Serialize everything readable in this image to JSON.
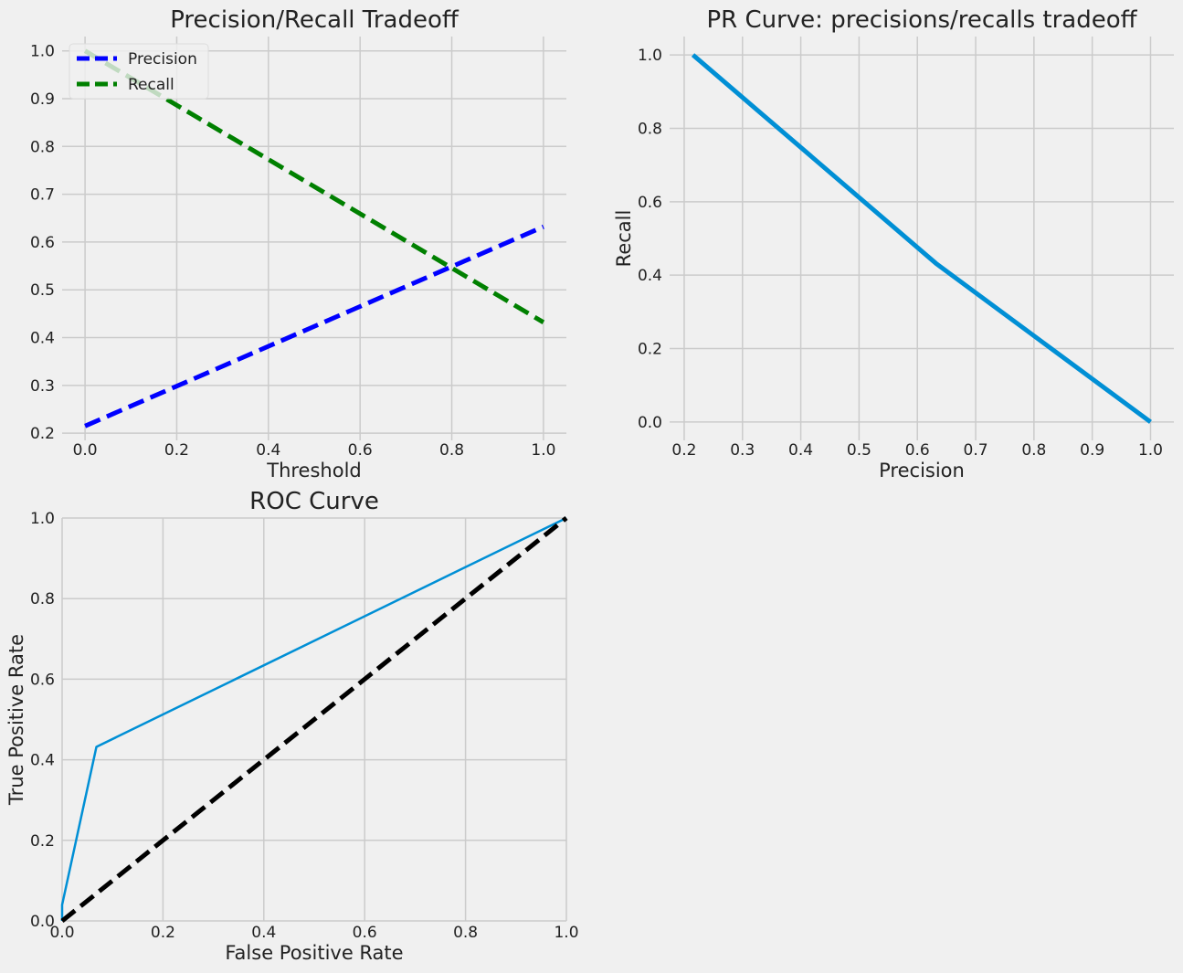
{
  "chart_data": [
    {
      "type": "line",
      "title": "Precision/Recall Tradeoff",
      "xlabel": "Threshold",
      "ylabel": "",
      "xlim": [
        -0.05,
        1.05
      ],
      "ylim": [
        0.185,
        1.03
      ],
      "xticks": [
        0.0,
        0.2,
        0.4,
        0.6,
        0.8,
        1.0
      ],
      "xtick_labels": [
        "0.0",
        "0.2",
        "0.4",
        "0.6",
        "0.8",
        "1.0"
      ],
      "yticks": [
        0.2,
        0.3,
        0.4,
        0.5,
        0.6,
        0.7,
        0.8,
        0.9,
        1.0
      ],
      "ytick_labels": [
        "0.2",
        "0.3",
        "0.4",
        "0.5",
        "0.6",
        "0.7",
        "0.8",
        "0.9",
        "1.0"
      ],
      "grid": true,
      "legend": "upper-left",
      "series": [
        {
          "name": "Precision",
          "color": "#0000ff",
          "style": "dashed",
          "x": [
            0,
            1
          ],
          "y": [
            0.215,
            0.632
          ]
        },
        {
          "name": "Recall",
          "color": "#008000",
          "style": "dashed",
          "x": [
            0,
            1
          ],
          "y": [
            1.0,
            0.432
          ]
        }
      ]
    },
    {
      "type": "line",
      "title": "PR Curve: precisions/recalls tradeoff",
      "xlabel": "Precision",
      "ylabel": "Recall",
      "xlim": [
        0.175,
        1.04
      ],
      "ylim": [
        -0.05,
        1.05
      ],
      "xticks": [
        0.2,
        0.3,
        0.4,
        0.5,
        0.6,
        0.7,
        0.8,
        0.9,
        1.0
      ],
      "xtick_labels": [
        "0.2",
        "0.3",
        "0.4",
        "0.5",
        "0.6",
        "0.7",
        "0.8",
        "0.9",
        "1.0"
      ],
      "yticks": [
        0.0,
        0.2,
        0.4,
        0.6,
        0.8,
        1.0
      ],
      "ytick_labels": [
        "0.0",
        "0.2",
        "0.4",
        "0.6",
        "0.8",
        "1.0"
      ],
      "grid": true,
      "series": [
        {
          "color": "#008fd5",
          "style": "solid",
          "x": [
            0.215,
            0.632,
            1.0
          ],
          "y": [
            1.0,
            0.432,
            0.0
          ]
        }
      ]
    },
    {
      "type": "line",
      "title": "ROC Curve",
      "xlabel": "False Positive Rate",
      "ylabel": "True Positive Rate",
      "xlim": [
        0,
        1
      ],
      "ylim": [
        0,
        1
      ],
      "xticks": [
        0.0,
        0.2,
        0.4,
        0.6,
        0.8,
        1.0
      ],
      "xtick_labels": [
        "0.0",
        "0.2",
        "0.4",
        "0.6",
        "0.8",
        "1.0"
      ],
      "yticks": [
        0.0,
        0.2,
        0.4,
        0.6,
        0.8,
        1.0
      ],
      "ytick_labels": [
        "0.0",
        "0.2",
        "0.4",
        "0.6",
        "0.8",
        "1.0"
      ],
      "grid": true,
      "series": [
        {
          "color": "#008fd5",
          "style": "solid",
          "x": [
            0.0,
            0.0,
            0.068,
            1.0
          ],
          "y": [
            0.0,
            0.04,
            0.432,
            1.0
          ]
        },
        {
          "color": "#000000",
          "style": "dashed",
          "x": [
            0,
            1
          ],
          "y": [
            0,
            1
          ]
        }
      ]
    }
  ]
}
